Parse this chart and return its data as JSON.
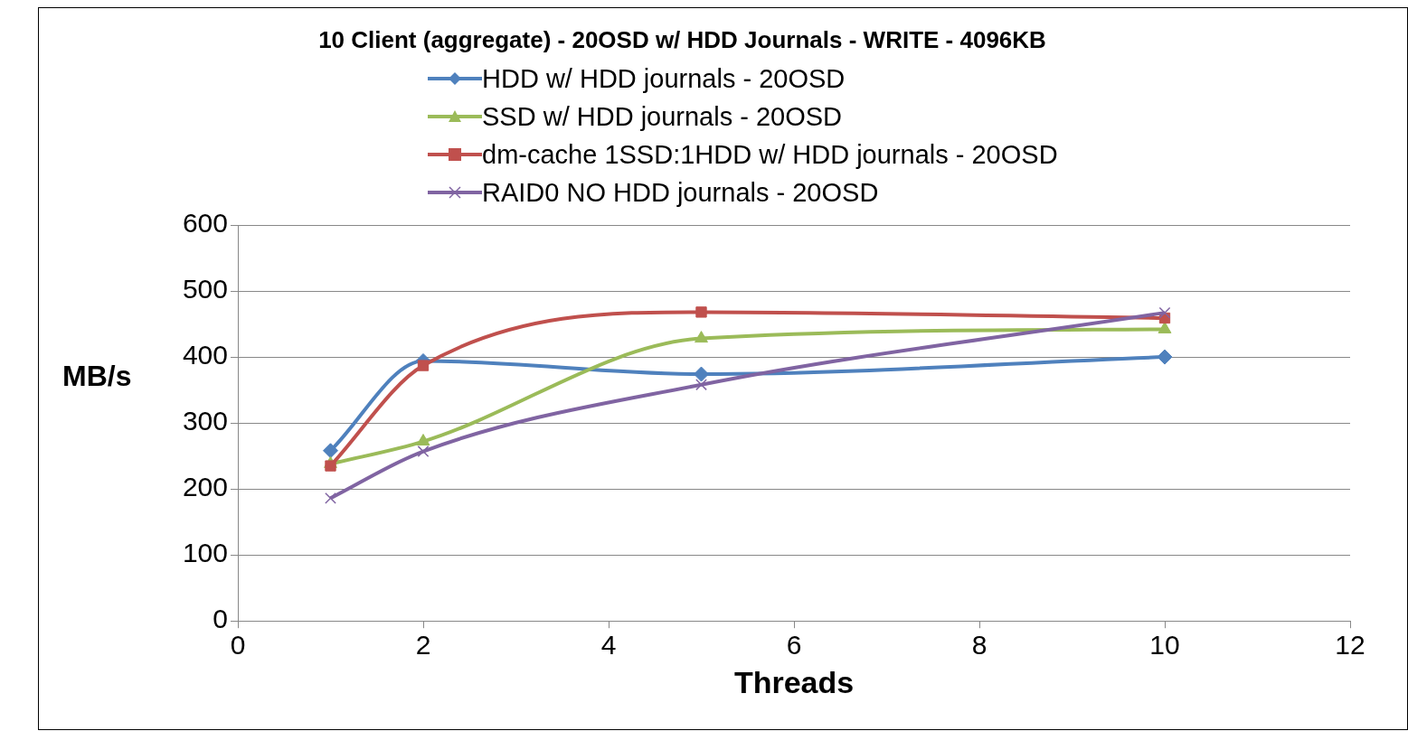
{
  "chart_data": {
    "type": "line",
    "title": "10 Client (aggregate) - 20OSD w/ HDD Journals - WRITE - 4096KB",
    "xlabel": "Threads",
    "ylabel": "MB/s",
    "x": [
      1,
      2,
      5,
      10
    ],
    "series": [
      {
        "name": "HDD w/ HDD journals - 20OSD",
        "color": "#4f81bd",
        "marker": "diamond",
        "values": [
          258,
          394,
          374,
          400
        ]
      },
      {
        "name": "SSD w/ HDD journals - 20OSD",
        "color": "#9bbb59",
        "marker": "triangle",
        "values": [
          238,
          272,
          428,
          442
        ]
      },
      {
        "name": "dm-cache 1SSD:1HDD w/ HDD journals - 20OSD",
        "color": "#c0504d",
        "marker": "square",
        "values": [
          235,
          387,
          468,
          459
        ]
      },
      {
        "name": "RAID0 NO HDD journals - 20OSD",
        "color": "#8064a2",
        "marker": "cross",
        "values": [
          186,
          257,
          358,
          467
        ]
      }
    ],
    "xlim": [
      0,
      12
    ],
    "xticks": [
      0,
      2,
      4,
      6,
      8,
      10,
      12
    ],
    "ylim": [
      0,
      600
    ],
    "yticks": [
      0,
      100,
      200,
      300,
      400,
      500,
      600
    ],
    "grid": "y",
    "legend": "top"
  }
}
